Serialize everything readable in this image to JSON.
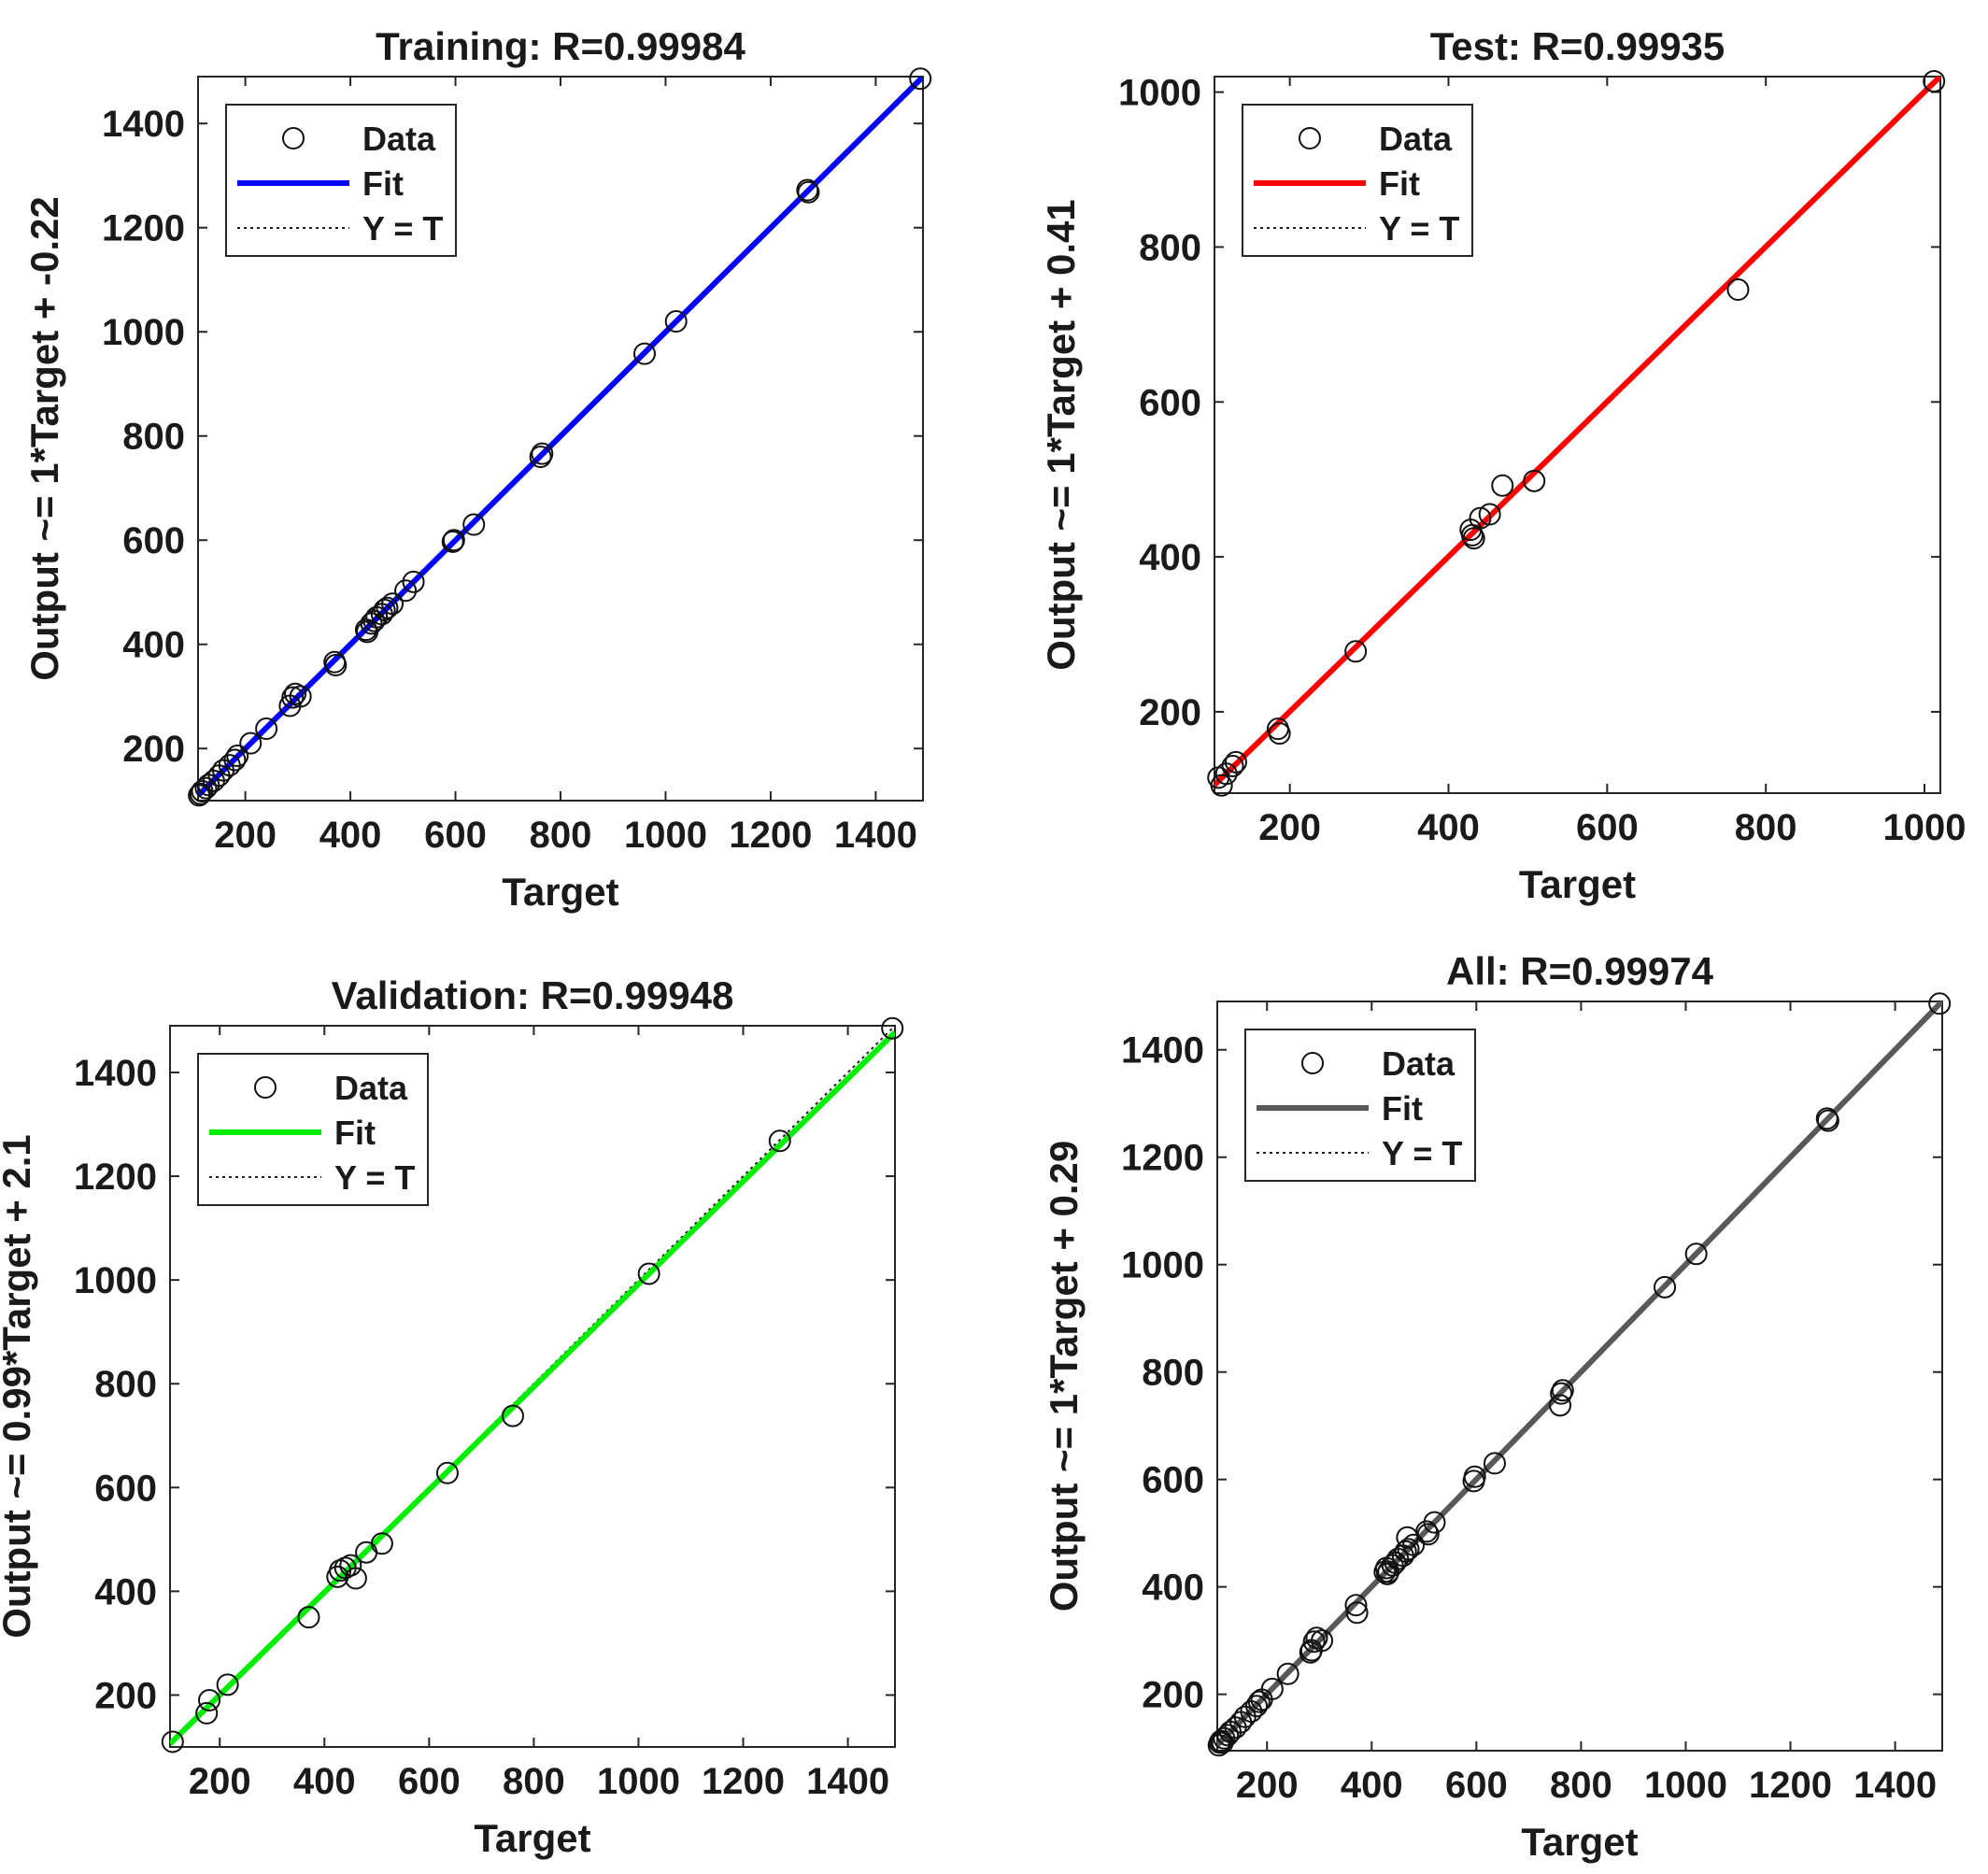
{
  "chart_data": [
    {
      "type": "scatter",
      "title": "Training: R=0.99984",
      "xlabel": "Target",
      "ylabel": "Output ~= 1*Target + -0.22",
      "xlim": [
        110,
        1490
      ],
      "ylim": [
        100,
        1490
      ],
      "xticks": [
        200,
        400,
        600,
        800,
        1000,
        1200,
        1400
      ],
      "yticks": [
        200,
        400,
        600,
        800,
        1000,
        1200,
        1400
      ],
      "fit": {
        "slope": 1,
        "intercept": -0.22
      },
      "fit_color": "#0000ff",
      "legend": [
        "Data",
        "Fit",
        "Y = T"
      ],
      "legend_position": "top-left",
      "series": [
        {
          "name": "Data",
          "x": [
            112,
            115,
            118,
            125,
            130,
            140,
            150,
            158,
            170,
            180,
            185,
            210,
            240,
            285,
            290,
            295,
            305,
            370,
            372,
            430,
            432,
            440,
            445,
            450,
            460,
            465,
            470,
            480,
            505,
            520,
            595,
            597,
            635,
            762,
            765,
            960,
            1020,
            1270,
            1272,
            1485
          ],
          "y": [
            110,
            113,
            118,
            124,
            130,
            138,
            148,
            158,
            168,
            178,
            186,
            210,
            238,
            282,
            298,
            305,
            300,
            366,
            360,
            428,
            424,
            440,
            445,
            452,
            458,
            466,
            470,
            478,
            503,
            520,
            597,
            600,
            630,
            760,
            766,
            958,
            1020,
            1272,
            1268,
            1486
          ]
        }
      ]
    },
    {
      "type": "scatter",
      "title": "Test: R=0.99935",
      "xlabel": "Target",
      "ylabel": "Output ~= 1*Target + 0.41",
      "xlim": [
        105,
        1020
      ],
      "ylim": [
        95,
        1020
      ],
      "xticks": [
        200,
        400,
        600,
        800,
        1000
      ],
      "yticks": [
        200,
        400,
        600,
        800,
        1000
      ],
      "fit": {
        "slope": 1,
        "intercept": 0.41
      },
      "fit_color": "#ff0000",
      "legend": [
        "Data",
        "Fit",
        "Y = T"
      ],
      "legend_position": "top-left",
      "series": [
        {
          "name": "Data",
          "x": [
            110,
            114,
            120,
            128,
            132,
            185,
            187,
            283,
            428,
            430,
            432,
            440,
            452,
            468,
            508,
            765,
            1012
          ],
          "y": [
            115,
            105,
            120,
            130,
            135,
            178,
            172,
            278,
            435,
            428,
            424,
            450,
            455,
            492,
            498,
            745,
            1014
          ]
        }
      ]
    },
    {
      "type": "scatter",
      "title": "Validation: R=0.99948",
      "xlabel": "Target",
      "ylabel": "Output ~= 0.99*Target + 2.1",
      "xlim": [
        105,
        1490
      ],
      "ylim": [
        100,
        1490
      ],
      "xticks": [
        200,
        400,
        600,
        800,
        1000,
        1200,
        1400
      ],
      "yticks": [
        200,
        400,
        600,
        800,
        1000,
        1200,
        1400
      ],
      "fit": {
        "slope": 0.99,
        "intercept": 2.1
      },
      "fit_color": "#00ee00",
      "legend": [
        "Data",
        "Fit",
        "Y = T"
      ],
      "legend_position": "top-left",
      "series": [
        {
          "name": "Data",
          "x": [
            110,
            175,
            180,
            215,
            370,
            425,
            430,
            440,
            450,
            460,
            480,
            510,
            635,
            760,
            1020,
            1270,
            1485
          ],
          "y": [
            110,
            165,
            190,
            220,
            350,
            428,
            440,
            445,
            450,
            425,
            475,
            492,
            628,
            738,
            1012,
            1268,
            1485
          ]
        }
      ]
    },
    {
      "type": "scatter",
      "title": "All: R=0.99974",
      "xlabel": "Target",
      "ylabel": "Output ~= 1*Target + 0.29",
      "xlim": [
        105,
        1490
      ],
      "ylim": [
        95,
        1490
      ],
      "xticks": [
        200,
        400,
        600,
        800,
        1000,
        1200,
        1400
      ],
      "yticks": [
        200,
        400,
        600,
        800,
        1000,
        1200,
        1400
      ],
      "fit": {
        "slope": 1,
        "intercept": 0.29
      },
      "fit_color": "#595959",
      "legend": [
        "Data",
        "Fit",
        "Y = T"
      ],
      "legend_position": "top-left",
      "series": [
        {
          "name": "Data",
          "x": [
            108,
            110,
            112,
            115,
            118,
            125,
            130,
            140,
            150,
            158,
            170,
            180,
            185,
            190,
            210,
            240,
            283,
            285,
            290,
            295,
            305,
            370,
            372,
            425,
            428,
            430,
            432,
            440,
            445,
            450,
            460,
            465,
            468,
            470,
            480,
            505,
            508,
            520,
            595,
            597,
            635,
            760,
            762,
            765,
            960,
            1020,
            1270,
            1272,
            1485
          ],
          "y": [
            105,
            110,
            113,
            110,
            118,
            124,
            130,
            138,
            148,
            158,
            168,
            178,
            186,
            190,
            210,
            238,
            278,
            282,
            298,
            305,
            300,
            366,
            352,
            428,
            435,
            424,
            428,
            440,
            445,
            452,
            458,
            466,
            492,
            470,
            478,
            503,
            498,
            520,
            597,
            605,
            630,
            738,
            760,
            766,
            958,
            1020,
            1272,
            1268,
            1486
          ]
        }
      ]
    }
  ]
}
